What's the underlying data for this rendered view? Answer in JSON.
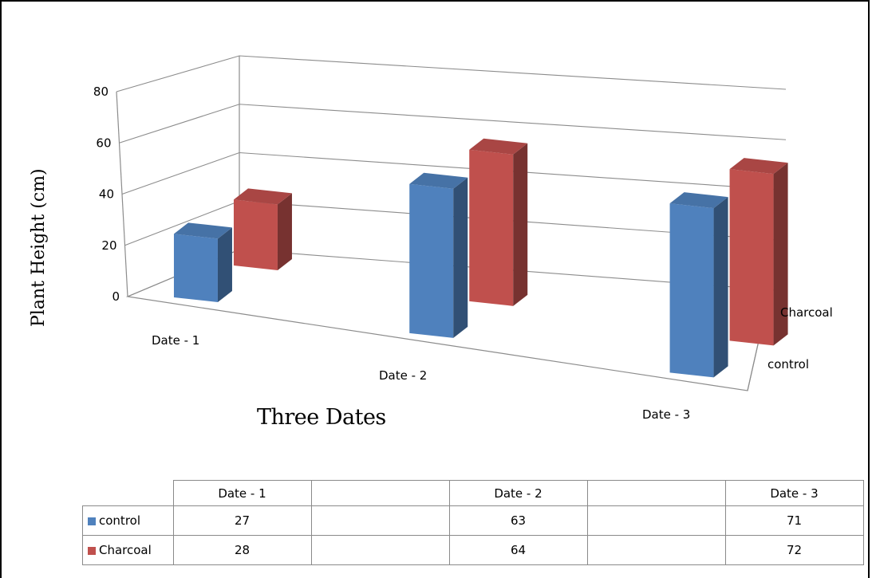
{
  "chart_data": {
    "type": "bar",
    "subtype": "3d-clustered-column",
    "categories": [
      "Date - 1",
      "Date - 2",
      "Date - 3"
    ],
    "series": [
      {
        "name": "control",
        "values": [
          27,
          63,
          71
        ],
        "color": "#4f81bd"
      },
      {
        "name": "Charcoal",
        "values": [
          28,
          64,
          72
        ],
        "color": "#c0504d"
      }
    ],
    "xlabel": "Three Dates",
    "ylabel": "Plant Height (cm)",
    "ylim": [
      0,
      80
    ],
    "yticks": [
      "0",
      "20",
      "40",
      "60",
      "80"
    ],
    "grid": true,
    "legend": "data table below chart"
  },
  "table": {
    "headers": [
      "Date - 1",
      "",
      "Date - 2",
      "",
      "Date - 3"
    ],
    "rows": [
      {
        "label": "control",
        "cells": [
          "27",
          "",
          "63",
          "",
          "71"
        ]
      },
      {
        "label": "Charcoal",
        "cells": [
          "28",
          "",
          "64",
          "",
          "72"
        ]
      }
    ]
  }
}
